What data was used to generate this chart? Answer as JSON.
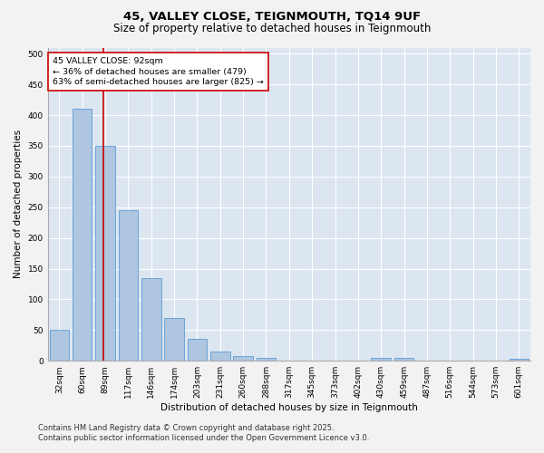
{
  "title_line1": "45, VALLEY CLOSE, TEIGNMOUTH, TQ14 9UF",
  "title_line2": "Size of property relative to detached houses in Teignmouth",
  "xlabel": "Distribution of detached houses by size in Teignmouth",
  "ylabel": "Number of detached properties",
  "categories": [
    "32sqm",
    "60sqm",
    "89sqm",
    "117sqm",
    "146sqm",
    "174sqm",
    "203sqm",
    "231sqm",
    "260sqm",
    "288sqm",
    "317sqm",
    "345sqm",
    "373sqm",
    "402sqm",
    "430sqm",
    "459sqm",
    "487sqm",
    "516sqm",
    "544sqm",
    "573sqm",
    "601sqm"
  ],
  "values": [
    50,
    410,
    350,
    245,
    135,
    70,
    35,
    15,
    7,
    5,
    0,
    0,
    0,
    0,
    5,
    5,
    0,
    0,
    0,
    0,
    3
  ],
  "bar_color": "#aec6e0",
  "bar_edge_color": "#5b9bd5",
  "bg_color": "#dce6f1",
  "grid_color": "#ffffff",
  "annotation_text": "45 VALLEY CLOSE: 92sqm\n← 36% of detached houses are smaller (479)\n63% of semi-detached houses are larger (825) →",
  "annotation_box_color": "#ffffff",
  "annotation_box_edge": "#cc0000",
  "vline_color": "#cc0000",
  "ylim": [
    0,
    510
  ],
  "yticks": [
    0,
    50,
    100,
    150,
    200,
    250,
    300,
    350,
    400,
    450,
    500
  ],
  "footer_line1": "Contains HM Land Registry data © Crown copyright and database right 2025.",
  "footer_line2": "Contains public sector information licensed under the Open Government Licence v3.0.",
  "title_fontsize": 9.5,
  "subtitle_fontsize": 8.5,
  "axis_label_fontsize": 7.5,
  "tick_fontsize": 6.5,
  "annotation_fontsize": 6.8,
  "footer_fontsize": 6.0
}
